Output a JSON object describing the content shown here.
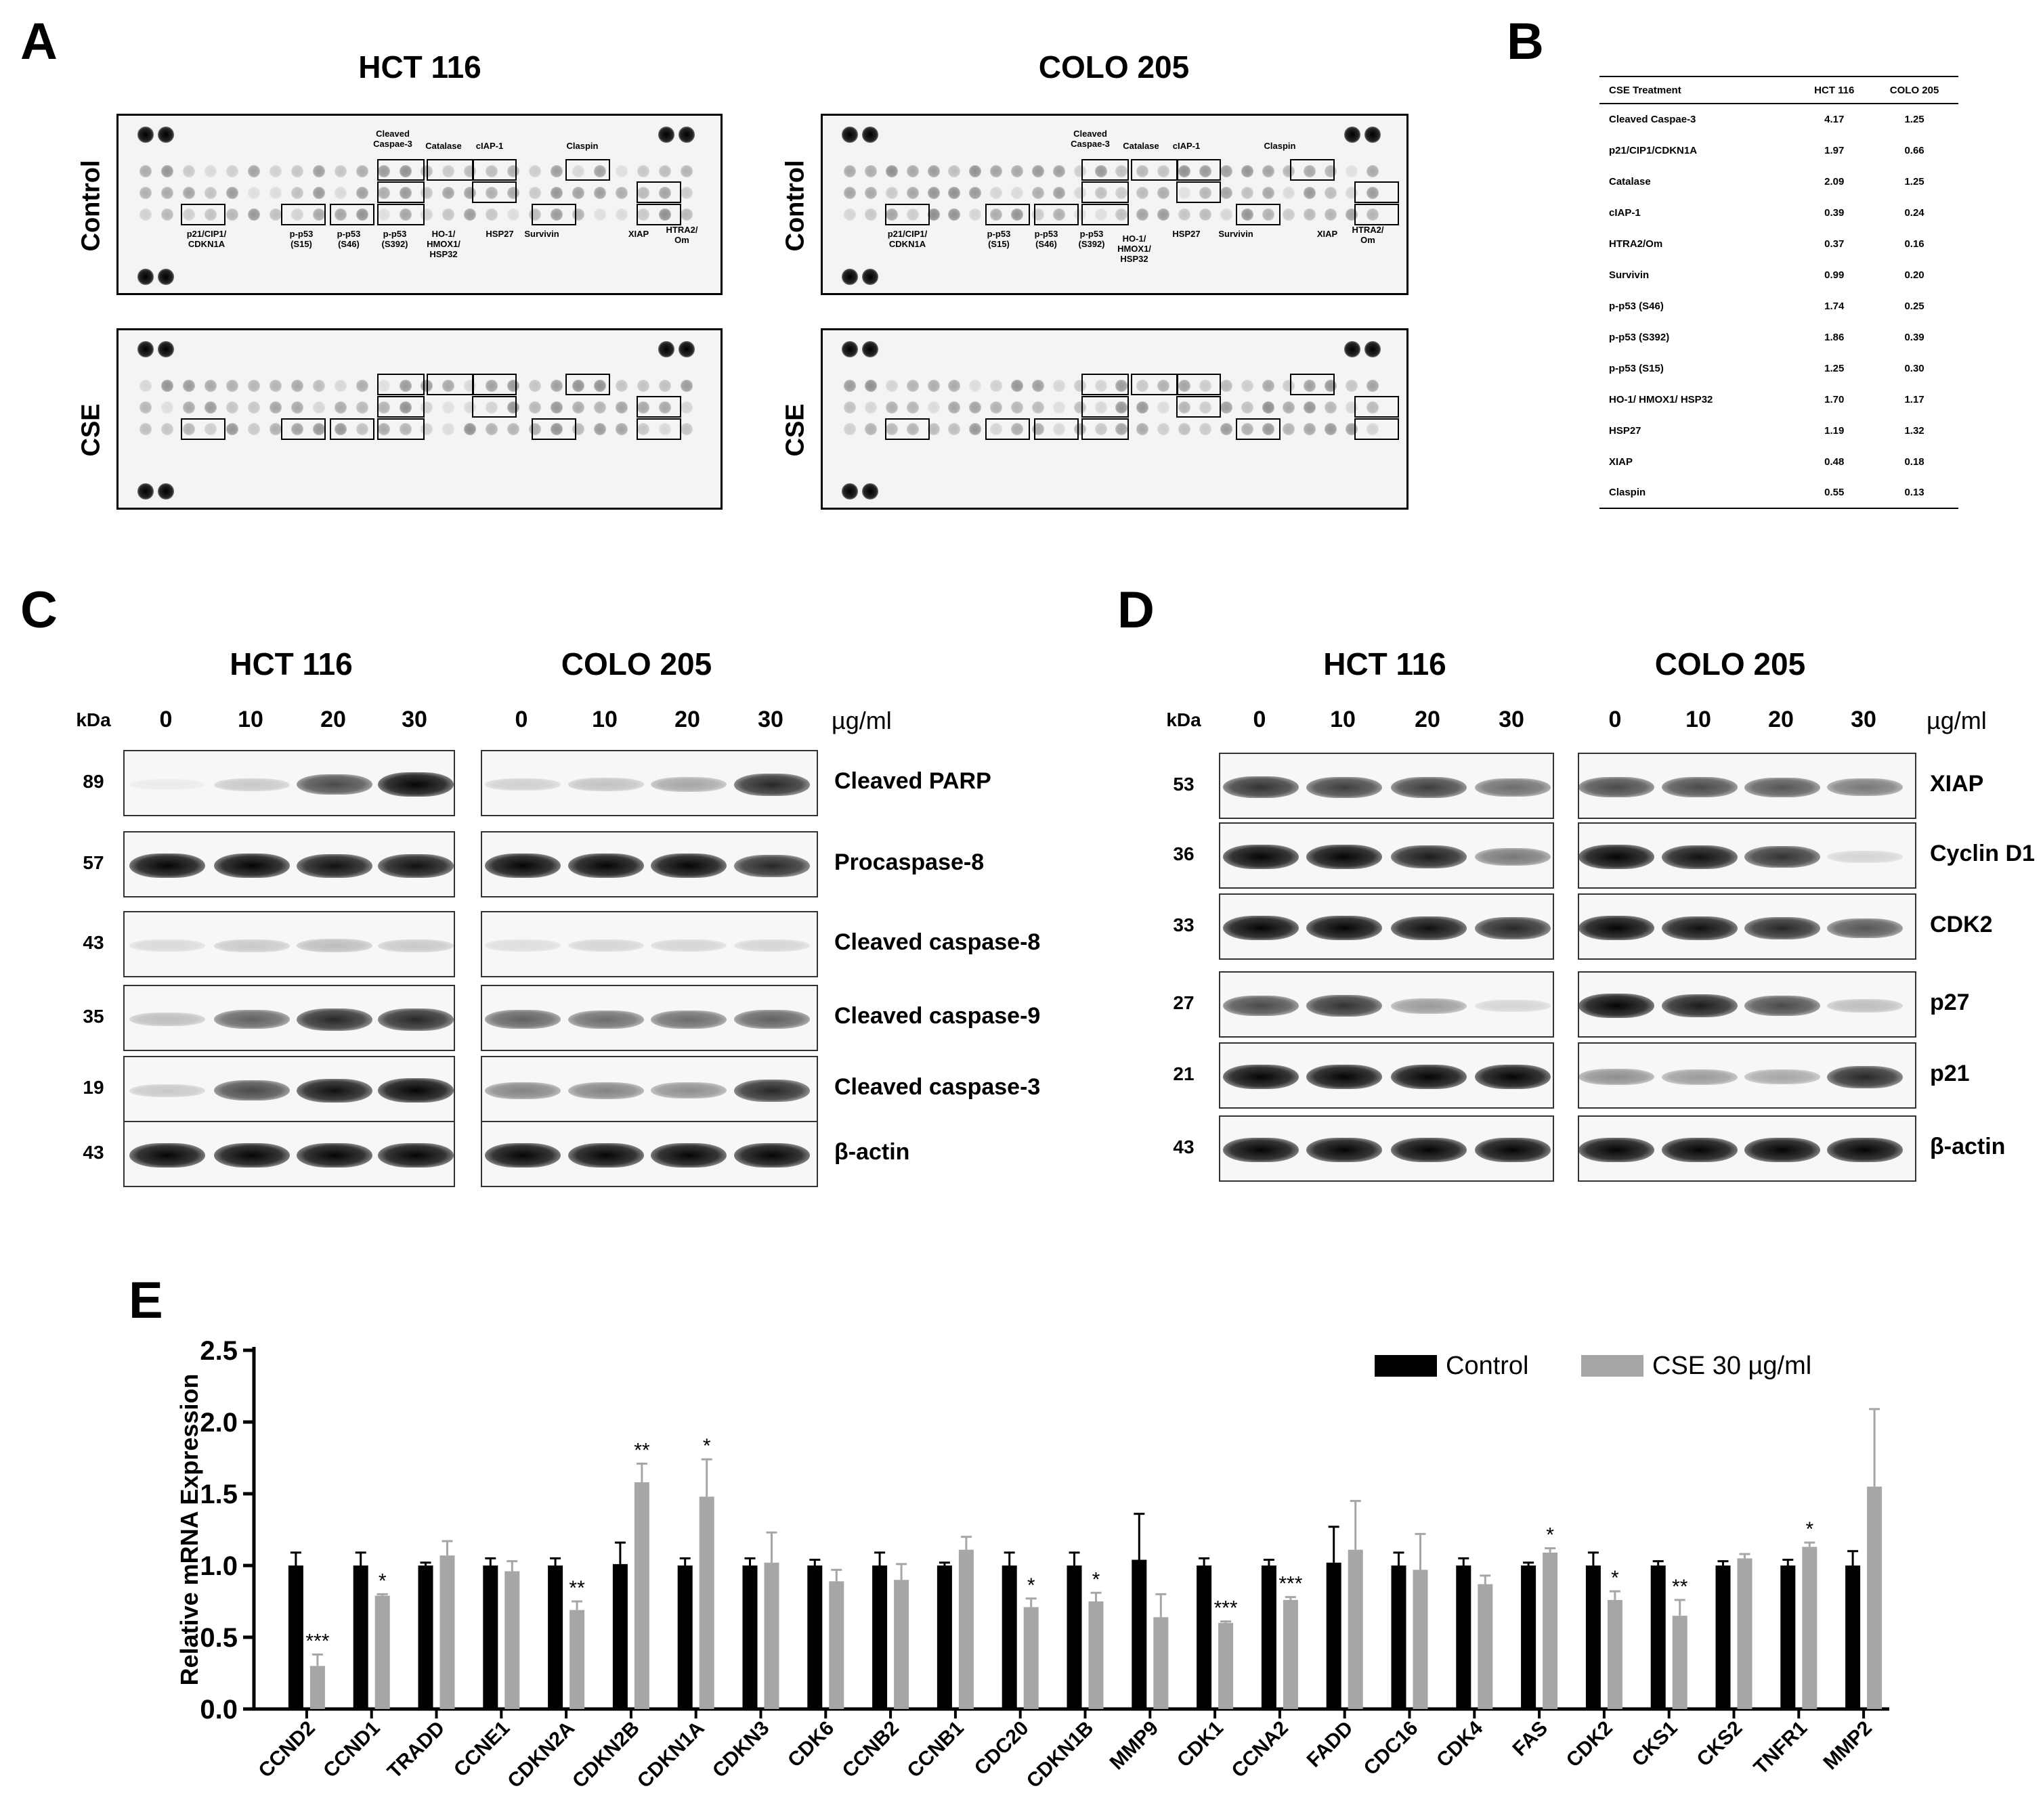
{
  "panels": {
    "A": "A",
    "B": "B",
    "C": "C",
    "D": "D",
    "E": "E"
  },
  "arrays": {
    "hct_title": "HCT 116",
    "colo_title": "COLO 205",
    "row_control": "Control",
    "row_cse": "CSE",
    "labels": {
      "cleaved_casp3": "Cleaved\nCaspae-3",
      "catalase": "Catalase",
      "ciap1": "cIAP-1",
      "claspin": "Claspin",
      "p21": "p21/CIP1/\nCDKN1A",
      "pp53_s15": "p-p53\n(S15)",
      "pp53_s46": "p-p53\n(S46)",
      "pp53_s392": "p-p53\n(S392)",
      "ho1": "HO-1/\nHMOX1/\nHSP32",
      "hsp27": "HSP27",
      "survivin": "Survivin",
      "xiap": "XIAP",
      "htra2": "HTRA2/\nOm"
    }
  },
  "table": {
    "headers": [
      "CSE Treatment",
      "HCT 116",
      "COLO 205"
    ],
    "rows": [
      [
        "Cleaved Caspae-3",
        "4.17",
        "1.25"
      ],
      [
        "p21/CIP1/CDKN1A",
        "1.97",
        "0.66"
      ],
      [
        "Catalase",
        "2.09",
        "1.25"
      ],
      [
        "cIAP-1",
        "0.39",
        "0.24"
      ],
      [
        "HTRA2/Om",
        "0.37",
        "0.16"
      ],
      [
        "Survivin",
        "0.99",
        "0.20"
      ],
      [
        "p-p53 (S46)",
        "1.74",
        "0.25"
      ],
      [
        "p-p53 (S392)",
        "1.86",
        "0.39"
      ],
      [
        "p-p53 (S15)",
        "1.25",
        "0.30"
      ],
      [
        "HO-1/ HMOX1/ HSP32",
        "1.70",
        "1.17"
      ],
      [
        "HSP27",
        "1.19",
        "1.32"
      ],
      [
        "XIAP",
        "0.48",
        "0.18"
      ],
      [
        "Claspin",
        "0.55",
        "0.13"
      ]
    ]
  },
  "blots_c": {
    "hct_title": "HCT 116",
    "colo_title": "COLO 205",
    "kda_label": "kDa",
    "unit": "µg/ml",
    "doses": [
      "0",
      "10",
      "20",
      "30"
    ],
    "rows": [
      {
        "kda": "89",
        "label": "Cleaved PARP",
        "hct": [
          0.0,
          0.15,
          0.7,
          1.0
        ],
        "colo": [
          0.12,
          0.18,
          0.3,
          0.85
        ]
      },
      {
        "kda": "57",
        "label": "Procaspase-8",
        "hct": [
          1.0,
          1.0,
          0.95,
          0.95
        ],
        "colo": [
          1.0,
          1.0,
          1.0,
          0.85
        ]
      },
      {
        "kda": "43",
        "label": "Cleaved caspase-8",
        "hct": [
          0.08,
          0.15,
          0.2,
          0.15
        ],
        "colo": [
          0.06,
          0.1,
          0.1,
          0.1
        ]
      },
      {
        "kda": "35",
        "label": "Cleaved caspase-9",
        "hct": [
          0.2,
          0.6,
          0.85,
          0.85
        ],
        "colo": [
          0.6,
          0.55,
          0.55,
          0.6
        ]
      },
      {
        "kda": "19",
        "label": "Cleaved caspase-3",
        "hct": [
          0.15,
          0.7,
          0.95,
          1.0
        ],
        "colo": [
          0.45,
          0.45,
          0.4,
          0.85
        ]
      },
      {
        "kda": "43",
        "label": "β-actin",
        "hct": [
          1.0,
          1.0,
          1.0,
          1.0
        ],
        "colo": [
          1.0,
          1.0,
          1.0,
          1.0
        ]
      }
    ]
  },
  "blots_d": {
    "hct_title": "HCT 116",
    "colo_title": "COLO 205",
    "kda_label": "kDa",
    "unit": "µg/ml",
    "doses": [
      "0",
      "10",
      "20",
      "30"
    ],
    "rows": [
      {
        "kda": "53",
        "label": "XIAP",
        "hct": [
          0.8,
          0.75,
          0.75,
          0.55
        ],
        "colo": [
          0.7,
          0.7,
          0.65,
          0.5
        ]
      },
      {
        "kda": "36",
        "label": "Cyclin D1",
        "hct": [
          1.0,
          1.0,
          0.9,
          0.5
        ],
        "colo": [
          1.0,
          0.95,
          0.8,
          0.1
        ]
      },
      {
        "kda": "33",
        "label": "CDK2",
        "hct": [
          1.0,
          1.0,
          0.95,
          0.85
        ],
        "colo": [
          1.0,
          0.95,
          0.85,
          0.65
        ]
      },
      {
        "kda": "27",
        "label": "p27",
        "hct": [
          0.7,
          0.8,
          0.35,
          0.1
        ],
        "colo": [
          1.0,
          0.9,
          0.7,
          0.2
        ]
      },
      {
        "kda": "21",
        "label": "p21",
        "hct": [
          1.0,
          1.0,
          1.0,
          1.0
        ],
        "colo": [
          0.4,
          0.35,
          0.3,
          0.85
        ]
      },
      {
        "kda": "43",
        "label": "β-actin",
        "hct": [
          1.0,
          1.0,
          1.0,
          1.0
        ],
        "colo": [
          1.0,
          1.0,
          1.0,
          1.0
        ]
      }
    ]
  },
  "chart_data": {
    "type": "bar",
    "title": "",
    "xlabel": "",
    "ylabel": "Relative mRNA Expression",
    "ylim": [
      0,
      2.5
    ],
    "yticks": [
      "0.0",
      "0.5",
      "1.0",
      "1.5",
      "2.0",
      "2.5"
    ],
    "legend_position": "top-right",
    "categories": [
      "CCND2",
      "CCND1",
      "TRADD",
      "CCNE1",
      "CDKN2A",
      "CDKN2B",
      "CDKN1A",
      "CDKN3",
      "CDK6",
      "CCNB2",
      "CCNB1",
      "CDC20",
      "CDKN1B",
      "MMP9",
      "CDK1",
      "CCNA2",
      "FADD",
      "CDC16",
      "CDK4",
      "FAS",
      "CDK2",
      "CKS1",
      "CKS2",
      "TNFR1",
      "MMP2"
    ],
    "series": [
      {
        "name": "Control",
        "color": "#000000",
        "values": [
          1.0,
          1.0,
          1.0,
          1.0,
          1.0,
          1.01,
          1.0,
          1.0,
          1.0,
          1.0,
          1.0,
          1.0,
          1.0,
          1.04,
          1.0,
          1.0,
          1.02,
          1.0,
          1.0,
          1.0,
          1.0,
          1.0,
          1.0,
          1.0,
          1.0
        ],
        "errors": [
          0.09,
          0.09,
          0.02,
          0.05,
          0.05,
          0.15,
          0.05,
          0.05,
          0.04,
          0.09,
          0.02,
          0.09,
          0.09,
          0.32,
          0.05,
          0.04,
          0.25,
          0.09,
          0.05,
          0.02,
          0.09,
          0.03,
          0.03,
          0.04,
          0.1
        ]
      },
      {
        "name": "CSE 30 µg/ml",
        "color": "#a6a6a6",
        "values": [
          0.3,
          0.79,
          1.07,
          0.96,
          0.69,
          1.58,
          1.48,
          1.02,
          0.89,
          0.9,
          1.11,
          0.71,
          0.75,
          0.64,
          0.6,
          0.76,
          1.11,
          0.97,
          0.87,
          1.09,
          0.76,
          0.65,
          1.05,
          1.13,
          1.55
        ],
        "errors": [
          0.08,
          0.01,
          0.1,
          0.07,
          0.06,
          0.13,
          0.26,
          0.21,
          0.08,
          0.11,
          0.09,
          0.06,
          0.06,
          0.16,
          0.01,
          0.02,
          0.34,
          0.25,
          0.06,
          0.03,
          0.06,
          0.11,
          0.03,
          0.03,
          0.54
        ]
      }
    ],
    "significance": [
      "***",
      "*",
      "",
      "",
      "**",
      "**",
      "*",
      "",
      "",
      "",
      "",
      "*",
      "*",
      "",
      "***",
      "***",
      "",
      "",
      "",
      "*",
      "*",
      "**",
      "",
      "*",
      ""
    ]
  }
}
